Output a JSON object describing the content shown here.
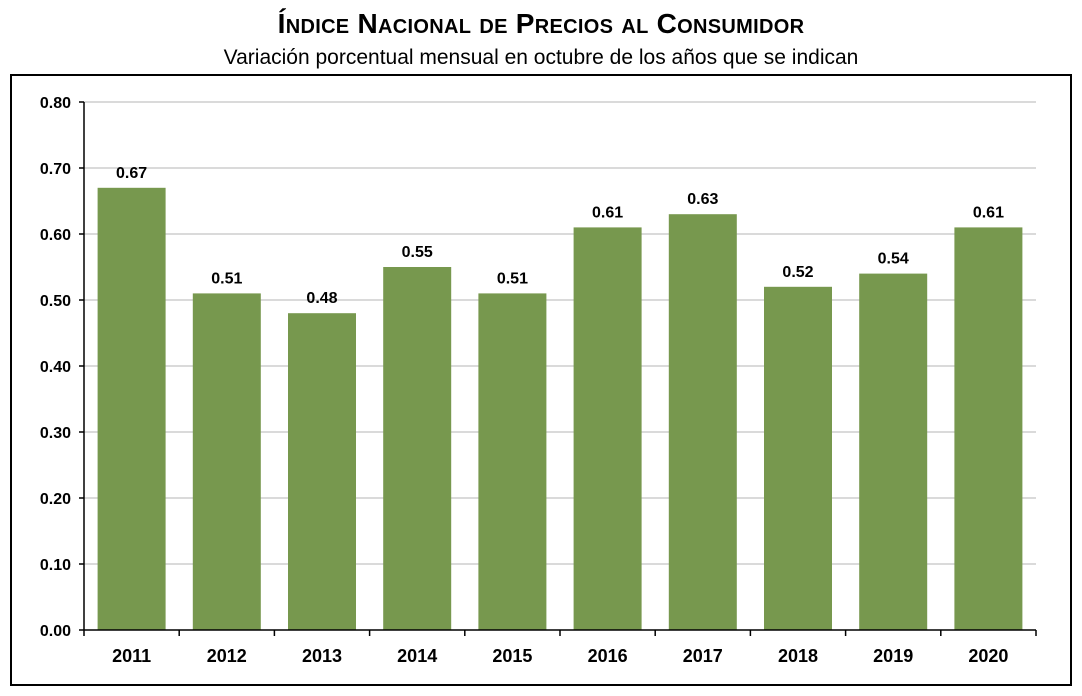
{
  "chart_data": {
    "type": "bar",
    "title": "Índice Nacional de Precios al Consumidor",
    "subtitle": "Variación porcentual mensual en octubre de los años que se indican",
    "categories": [
      "2011",
      "2012",
      "2013",
      "2014",
      "2015",
      "2016",
      "2017",
      "2018",
      "2019",
      "2020"
    ],
    "values": [
      0.67,
      0.51,
      0.48,
      0.55,
      0.51,
      0.61,
      0.63,
      0.52,
      0.54,
      0.61
    ],
    "value_labels": [
      "0.67",
      "0.51",
      "0.48",
      "0.55",
      "0.51",
      "0.61",
      "0.63",
      "0.52",
      "0.54",
      "0.61"
    ],
    "y_ticks": [
      "0.00",
      "0.10",
      "0.20",
      "0.30",
      "0.40",
      "0.50",
      "0.60",
      "0.70",
      "0.80"
    ],
    "ylim": [
      0,
      0.8
    ],
    "grid": true,
    "legend": "none",
    "bar_color": "#77984e"
  }
}
